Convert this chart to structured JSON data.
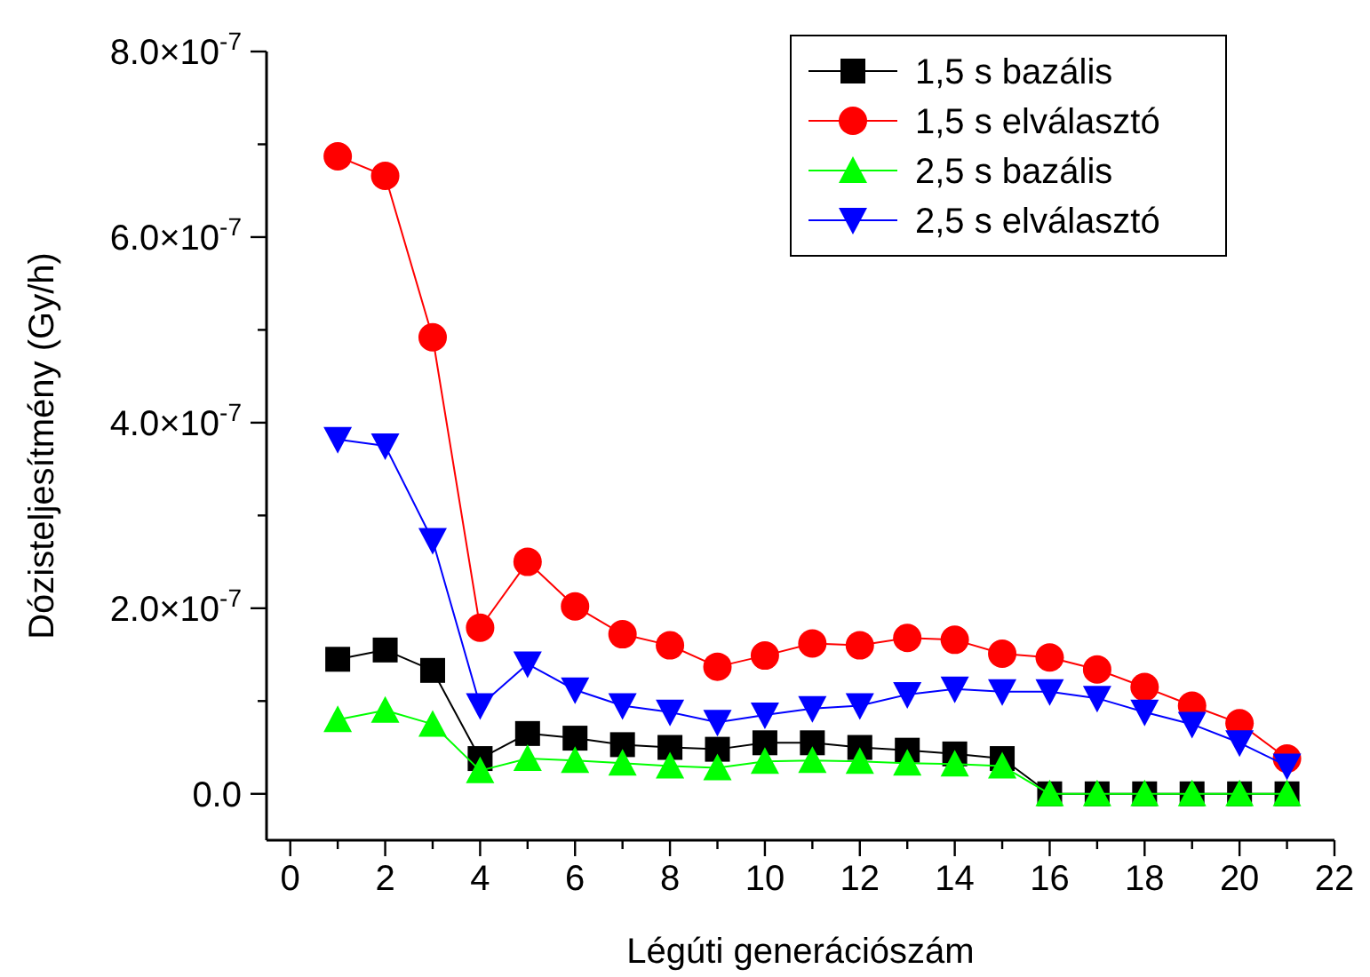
{
  "chart_data": {
    "type": "line",
    "xlabel": "Légúti generációszám",
    "ylabel": "Dózisteljesítmény (Gy/h)",
    "x": [
      1,
      2,
      3,
      4,
      5,
      6,
      7,
      8,
      9,
      10,
      11,
      12,
      13,
      14,
      15,
      16,
      17,
      18,
      19,
      20,
      21
    ],
    "series": [
      {
        "name": "1,5 s bazális",
        "color": "#000000",
        "marker": "square",
        "values": [
          1.45e-07,
          1.55e-07,
          1.33e-07,
          3.8e-08,
          6.5e-08,
          6e-08,
          5.3e-08,
          5e-08,
          4.8e-08,
          5.5e-08,
          5.5e-08,
          5e-08,
          4.7e-08,
          4.3e-08,
          3.8e-08,
          0,
          0,
          0,
          0,
          0,
          0
        ]
      },
      {
        "name": "1,5 s elválasztó",
        "color": "#ff0000",
        "marker": "circle",
        "values": [
          6.87e-07,
          6.66e-07,
          4.92e-07,
          1.79e-07,
          2.5e-07,
          2.02e-07,
          1.72e-07,
          1.6e-07,
          1.37e-07,
          1.49e-07,
          1.62e-07,
          1.6e-07,
          1.68e-07,
          1.66e-07,
          1.51e-07,
          1.47e-07,
          1.34e-07,
          1.15e-07,
          9.5e-08,
          7.6e-08,
          3.8e-08
        ]
      },
      {
        "name": "2,5 s bazális",
        "color": "#00ff00",
        "marker": "triangle",
        "values": [
          8e-08,
          9e-08,
          7.5e-08,
          2.5e-08,
          3.8e-08,
          3.6e-08,
          3.3e-08,
          3e-08,
          2.8e-08,
          3.5e-08,
          3.6e-08,
          3.5e-08,
          3.3e-08,
          3.2e-08,
          3e-08,
          0,
          0,
          0,
          0,
          0,
          0
        ]
      },
      {
        "name": "2,5 s elválasztó",
        "color": "#0000ff",
        "marker": "triangle-down",
        "values": [
          3.82e-07,
          3.75e-07,
          2.73e-07,
          9.5e-08,
          1.4e-07,
          1.12e-07,
          9.5e-08,
          8.8e-08,
          7.7e-08,
          8.5e-08,
          9.2e-08,
          9.5e-08,
          1.07e-07,
          1.13e-07,
          1.1e-07,
          1.1e-07,
          1.03e-07,
          8.8e-08,
          7.5e-08,
          5.5e-08,
          3e-08
        ]
      }
    ],
    "xlim": [
      -0.5,
      22
    ],
    "ylim": [
      -5e-08,
      8e-07
    ],
    "xticks": [
      0,
      {
        "value": 1,
        "label": null
      },
      2,
      {
        "value": 3,
        "label": null
      },
      4,
      {
        "value": 5,
        "label": null
      },
      6,
      {
        "value": 7,
        "label": null
      },
      8,
      {
        "value": 9,
        "label": null
      },
      10,
      {
        "value": 11,
        "label": null
      },
      12,
      {
        "value": 13,
        "label": null
      },
      14,
      {
        "value": 15,
        "label": null
      },
      16,
      {
        "value": 17,
        "label": null
      },
      18,
      {
        "value": 19,
        "label": null
      },
      20,
      {
        "value": 21,
        "label": null
      },
      22
    ],
    "yticks": [
      {
        "value": 0,
        "label": "0.0"
      },
      {
        "value": 1e-07,
        "label": null
      },
      {
        "value": 2e-07,
        "label": "2.0×10$^{-7}$"
      },
      {
        "value": 3e-07,
        "label": null
      },
      {
        "value": 4e-07,
        "label": "4.0×10$^{-7}$"
      },
      {
        "value": 5e-07,
        "label": null
      },
      {
        "value": 6e-07,
        "label": "6.0×10$^{-7}$"
      },
      {
        "value": 7e-07,
        "label": null
      },
      {
        "value": 8e-07,
        "label": "8.0×10$^{-7}$"
      }
    ],
    "legend": "top right",
    "line_style": "solid"
  }
}
